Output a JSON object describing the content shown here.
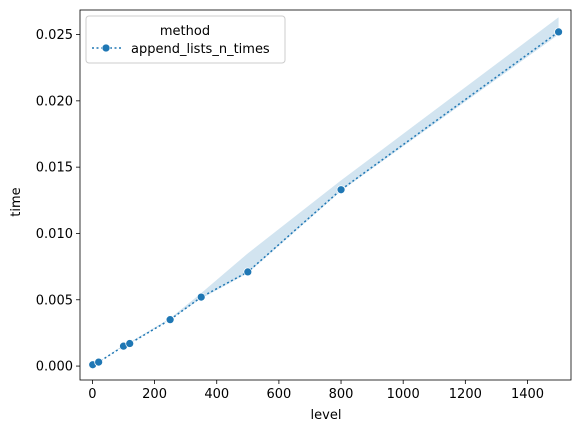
{
  "chart_data": {
    "type": "line",
    "xlabel": "level",
    "ylabel": "time",
    "xlim": [
      -40,
      1540
    ],
    "ylim": [
      -0.00105,
      0.02685
    ],
    "xticks": [
      0,
      200,
      400,
      600,
      800,
      1000,
      1200,
      1400
    ],
    "xtick_labels": [
      "0",
      "200",
      "400",
      "600",
      "800",
      "1000",
      "1200",
      "1400"
    ],
    "yticks": [
      0.0,
      0.005,
      0.01,
      0.015,
      0.02,
      0.025
    ],
    "ytick_labels": [
      "0.000",
      "0.005",
      "0.010",
      "0.015",
      "0.020",
      "0.025"
    ],
    "grid": false,
    "legend": {
      "title": "method",
      "placement": "top-left"
    },
    "series": [
      {
        "name": "append_lists_n_times",
        "color": "#1f77b4",
        "linestyle": "dotted",
        "marker": "circle",
        "x": [
          1,
          20,
          100,
          120,
          250,
          350,
          500,
          800,
          1500
        ],
        "y": [
          0.0001,
          0.0003,
          0.0015,
          0.0017,
          0.0035,
          0.0052,
          0.0071,
          0.0133,
          0.0252
        ],
        "ci_lower": [
          0.0001,
          0.0003,
          0.0015,
          0.0017,
          0.0035,
          0.0051,
          0.007,
          0.0132,
          0.025
        ],
        "ci_upper": [
          0.0001,
          0.0003,
          0.0016,
          0.0018,
          0.0036,
          0.0055,
          0.0085,
          0.014,
          0.0263
        ]
      }
    ]
  }
}
